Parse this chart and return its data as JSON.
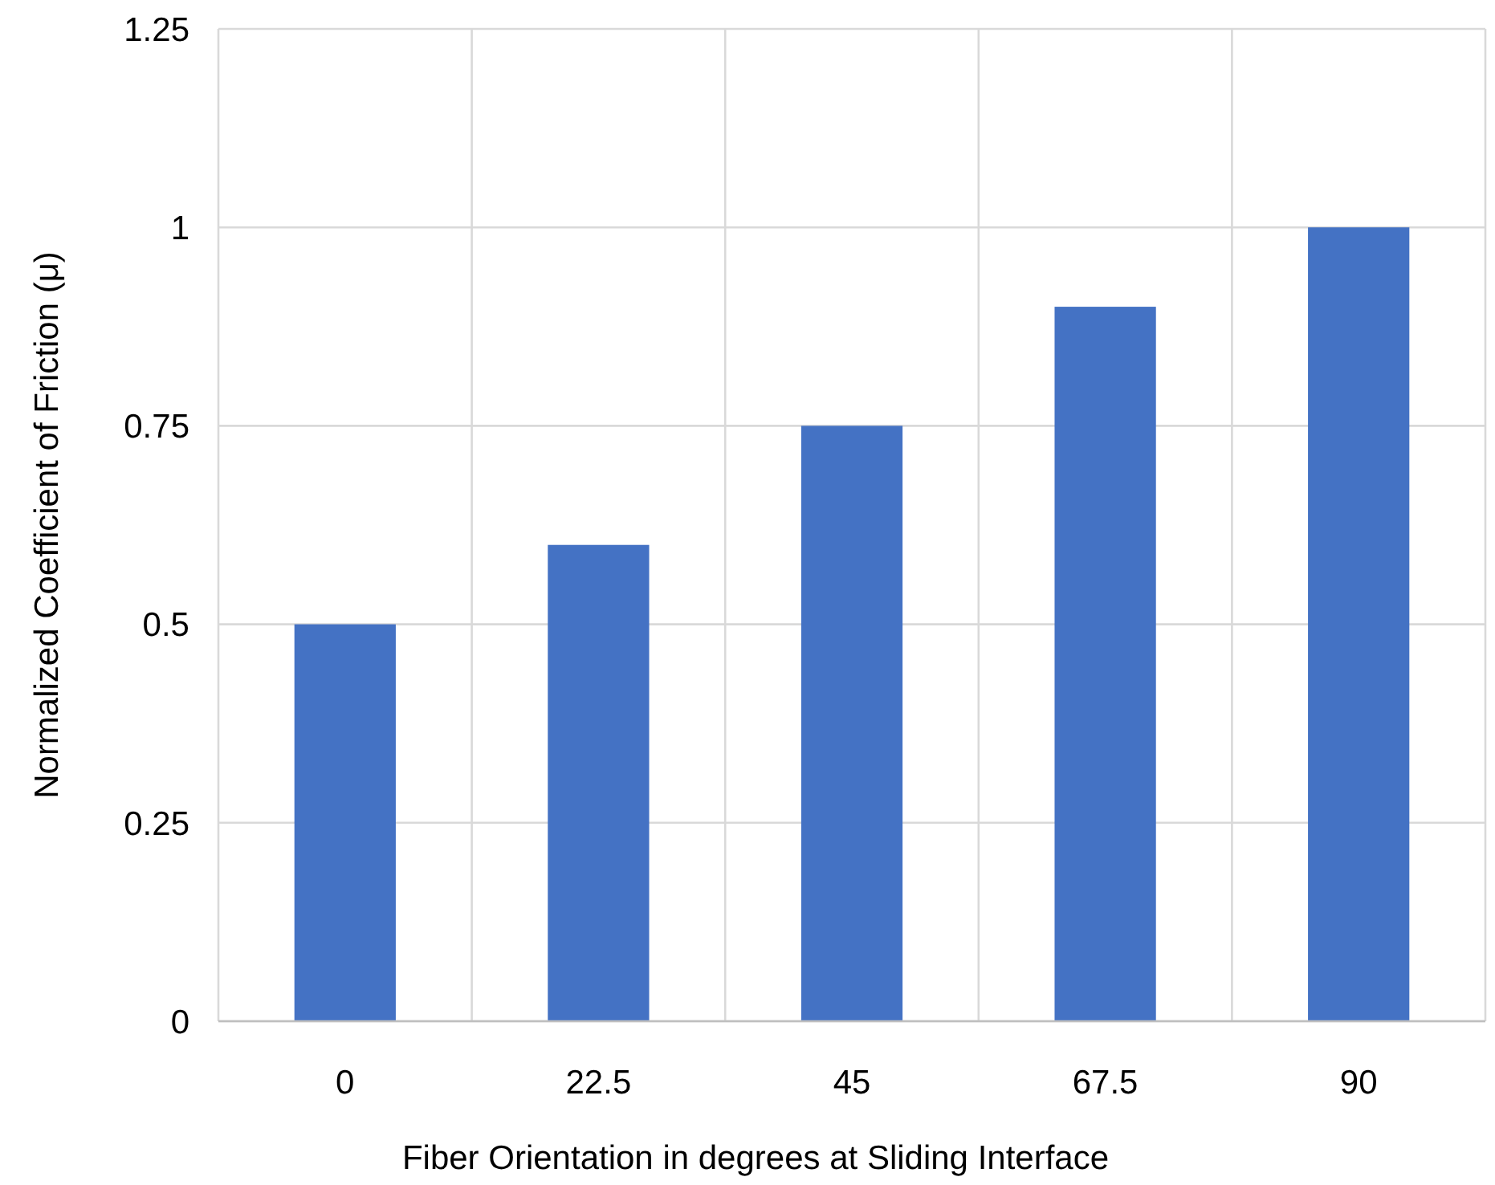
{
  "chart_data": {
    "type": "bar",
    "xlabel": "Fiber Orientation in degrees at Sliding Interface",
    "ylabel": "Normalized Coefficient of Friction (μ)",
    "categories": [
      "0",
      "22.5",
      "45",
      "67.5",
      "90"
    ],
    "values": [
      0.5,
      0.6,
      0.75,
      0.9,
      1
    ],
    "color": "#4472c4",
    "ylim": [
      0,
      1.25
    ],
    "yticks": [
      0,
      0.25,
      0.5,
      0.75,
      1,
      1.25
    ],
    "grid": true
  }
}
